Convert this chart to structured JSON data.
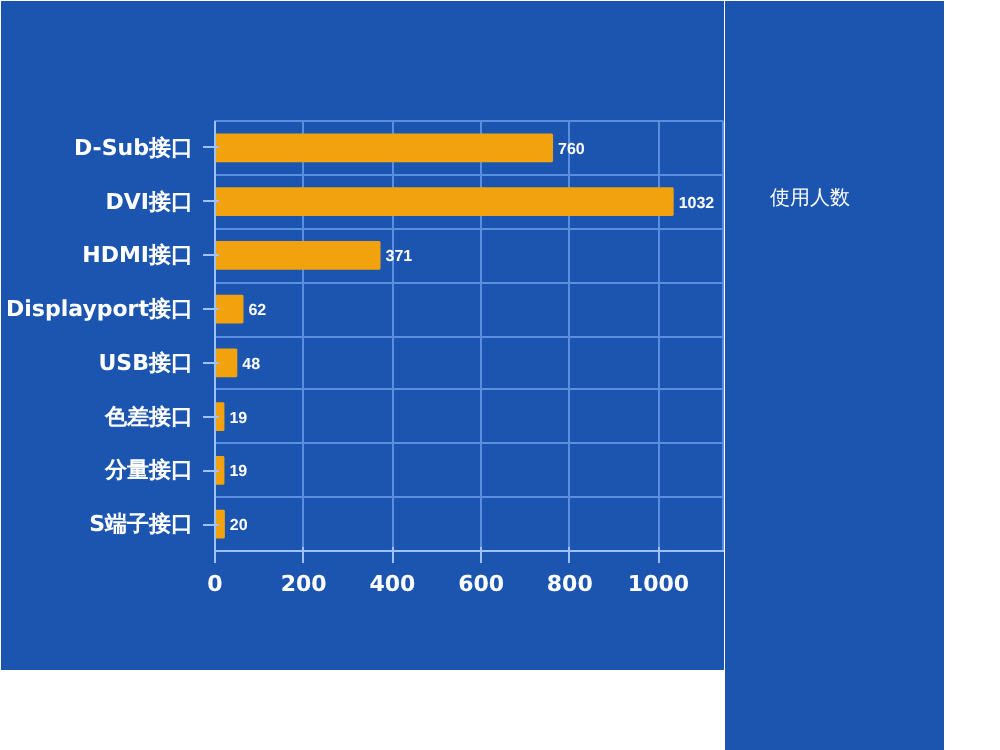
{
  "chart_data": {
    "type": "bar",
    "orientation": "horizontal",
    "categories": [
      "D-Sub接口",
      "DVI接口",
      "HDMI接口",
      "Displayport接口",
      "USB接口",
      "色差接口",
      "分量接口",
      "S端子接口"
    ],
    "series": [
      {
        "name": "使用人数",
        "color": "#f2a20c",
        "values": [
          760,
          1032,
          371,
          62,
          48,
          19,
          19,
          20
        ]
      }
    ],
    "xlim": [
      0,
      1150
    ],
    "xticks": [
      0,
      200,
      400,
      600,
      800,
      1000
    ],
    "grid": true,
    "legend": "right",
    "data_labels": true
  }
}
